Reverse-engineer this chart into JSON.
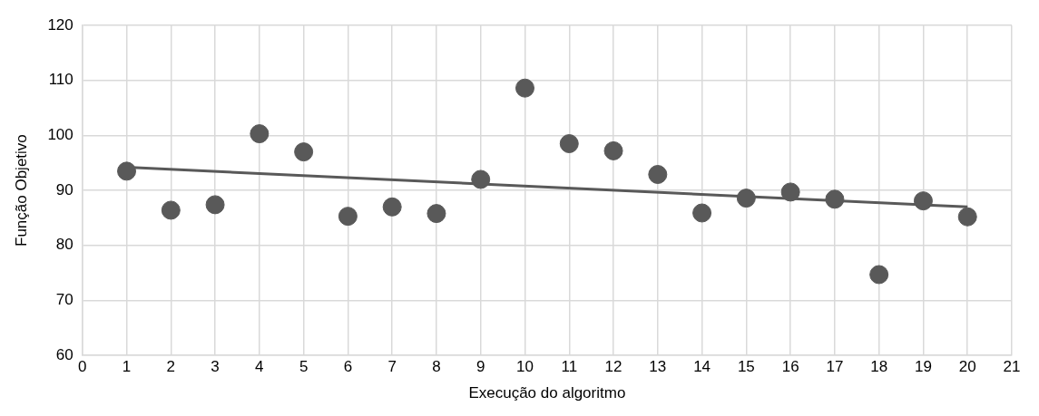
{
  "chart_data": {
    "type": "scatter",
    "xlabel": "Execução do algoritmo",
    "ylabel": "Função Objetivo",
    "xlim": [
      0,
      21
    ],
    "xticks": [
      0,
      1,
      2,
      3,
      4,
      5,
      6,
      7,
      8,
      9,
      10,
      11,
      12,
      13,
      14,
      15,
      16,
      17,
      18,
      19,
      20,
      21
    ],
    "ylim": [
      60,
      120
    ],
    "yticks": [
      60,
      70,
      80,
      90,
      100,
      110,
      120
    ],
    "grid": true,
    "legend": false,
    "series": [
      {
        "color": "#595959",
        "marker": "circle",
        "x": [
          1,
          2,
          3,
          4,
          5,
          6,
          7,
          8,
          9,
          10,
          11,
          12,
          13,
          14,
          15,
          16,
          17,
          18,
          19,
          20
        ],
        "values": [
          93.5,
          86.4,
          87.4,
          100.3,
          97.0,
          85.3,
          87.0,
          85.8,
          92.0,
          108.6,
          98.5,
          97.2,
          92.9,
          85.9,
          88.6,
          89.7,
          88.4,
          74.7,
          88.1,
          85.2
        ]
      },
      {
        "type": "line",
        "color": "#595959",
        "x": [
          1,
          20
        ],
        "values": [
          94.2,
          87.0
        ]
      }
    ]
  }
}
